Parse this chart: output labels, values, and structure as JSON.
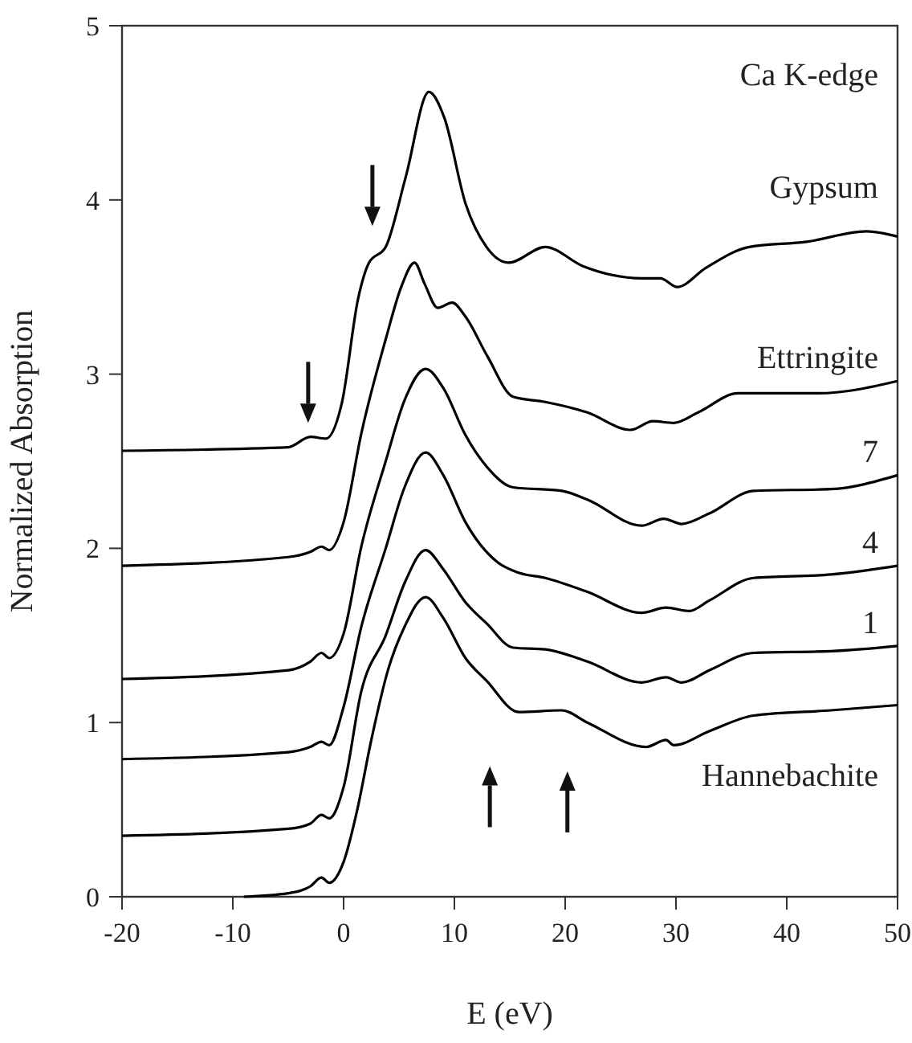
{
  "chart_data": {
    "type": "line",
    "xlabel": "E (eV)",
    "ylabel": "Normalized Absorption",
    "annotations": [
      "Ca K-edge"
    ],
    "xlim": [
      -20,
      50
    ],
    "ylim": [
      0,
      5
    ],
    "xticks": [
      -20,
      -10,
      0,
      10,
      20,
      30,
      40,
      50
    ],
    "yticks": [
      0,
      1,
      2,
      3,
      4,
      5
    ],
    "grid": false,
    "marker": "none",
    "line_style": "solid",
    "series": [
      {
        "name": "Gypsum",
        "color": "#000000",
        "x": [
          -20,
          -5,
          -3,
          -1.6,
          -0.14,
          1.3,
          2.3,
          3.8,
          5.6,
          7.7,
          9.1,
          11,
          12.9,
          14.9,
          18.2,
          21.6,
          26.9,
          28.6,
          30.1,
          32.7,
          36.6,
          41.8,
          47.2,
          50
        ],
        "values": [
          2.56,
          2.58,
          2.64,
          2.63,
          2.84,
          3.43,
          3.64,
          3.73,
          4.13,
          4.62,
          4.47,
          3.98,
          3.73,
          3.64,
          3.73,
          3.62,
          3.55,
          3.55,
          3.5,
          3.61,
          3.73,
          3.76,
          3.82,
          3.79
        ]
      },
      {
        "name": "Ettringite",
        "color": "#000000",
        "x": [
          -20,
          -5,
          -3,
          -2,
          -1.3,
          0,
          1.6,
          3.8,
          5.2,
          6.4,
          7.3,
          8.5,
          9.8,
          11,
          13,
          15.3,
          18.2,
          22,
          25.9,
          27.9,
          29.8,
          32,
          35.6,
          42.8,
          50
        ],
        "values": [
          1.9,
          1.95,
          1.98,
          2.01,
          1.99,
          2.15,
          2.66,
          3.2,
          3.5,
          3.64,
          3.52,
          3.38,
          3.41,
          3.33,
          3.1,
          2.87,
          2.84,
          2.78,
          2.68,
          2.73,
          2.72,
          2.78,
          2.89,
          2.89,
          2.96
        ]
      },
      {
        "name": "7",
        "color": "#000000",
        "x": [
          -20,
          -5,
          -3,
          -2,
          -1.3,
          0,
          1.6,
          3.8,
          5.5,
          7.4,
          9,
          11,
          12.9,
          15.3,
          19.7,
          22,
          26.9,
          28.9,
          30.5,
          33,
          37,
          44,
          50
        ],
        "values": [
          1.25,
          1.3,
          1.35,
          1.4,
          1.37,
          1.51,
          2.01,
          2.5,
          2.85,
          3.03,
          2.92,
          2.65,
          2.47,
          2.35,
          2.33,
          2.28,
          2.13,
          2.17,
          2.14,
          2.2,
          2.33,
          2.34,
          2.42
        ]
      },
      {
        "name": "4",
        "color": "#000000",
        "x": [
          -20,
          -5,
          -3,
          -2,
          -1.3,
          0,
          1.6,
          3.8,
          5.5,
          7.4,
          9,
          11,
          13.9,
          15.8,
          18.2,
          22,
          26.9,
          29.1,
          31.2,
          33,
          37,
          44,
          50
        ],
        "values": [
          0.79,
          0.83,
          0.86,
          0.89,
          0.87,
          1.09,
          1.55,
          2.0,
          2.35,
          2.55,
          2.42,
          2.15,
          1.92,
          1.86,
          1.83,
          1.75,
          1.63,
          1.66,
          1.64,
          1.7,
          1.83,
          1.85,
          1.9
        ]
      },
      {
        "name": "1",
        "color": "#000000",
        "x": [
          -20,
          -5,
          -3,
          -2,
          -1.3,
          0,
          1.6,
          3.8,
          5.5,
          7.4,
          9,
          11,
          12.9,
          15.3,
          18.2,
          22,
          26.9,
          29.1,
          30.5,
          33,
          37,
          44,
          50
        ],
        "values": [
          0.35,
          0.39,
          0.42,
          0.47,
          0.45,
          0.63,
          1.18,
          1.5,
          1.8,
          1.99,
          1.88,
          1.69,
          1.57,
          1.43,
          1.42,
          1.35,
          1.23,
          1.26,
          1.23,
          1.3,
          1.4,
          1.41,
          1.44
        ]
      },
      {
        "name": "Hannebachite",
        "color": "#000000",
        "x": [
          -9,
          -5,
          -3,
          -2,
          -1.3,
          0,
          1.2,
          2.5,
          4,
          5.5,
          7.4,
          9,
          11,
          12.9,
          15.8,
          19.7,
          22,
          27.3,
          29.1,
          29.8,
          33,
          37,
          44,
          50
        ],
        "values": [
          0,
          0.02,
          0.06,
          0.11,
          0.08,
          0.2,
          0.49,
          0.9,
          1.3,
          1.55,
          1.72,
          1.6,
          1.37,
          1.24,
          1.06,
          1.07,
          1.0,
          0.86,
          0.9,
          0.87,
          0.95,
          1.04,
          1.07,
          1.1
        ]
      }
    ]
  }
}
